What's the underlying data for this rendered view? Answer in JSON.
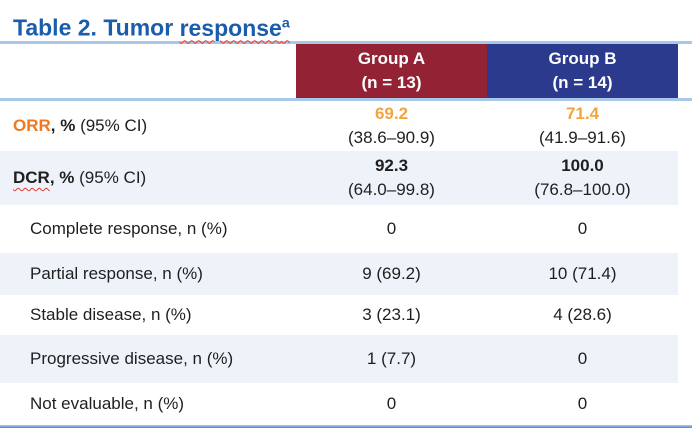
{
  "title": {
    "prefix": "Table 2. Tumor ",
    "underlined_word": "response",
    "superscript": "a"
  },
  "table": {
    "col_headers": [
      {
        "group": "Group A",
        "n": "(n = 13)"
      },
      {
        "group": "Group B",
        "n": "(n = 14)"
      }
    ],
    "rows": [
      {
        "label": "ORR",
        "label_suffix": ", %",
        "label_ci": " (95% CI)",
        "a_main": "69.2",
        "a_ci": "(38.6–90.9)",
        "b_main": "71.4",
        "b_ci": "(41.9–91.6)"
      },
      {
        "label": "DCR",
        "label_suffix": ", %",
        "label_ci": " (95% CI)",
        "a_main": "92.3",
        "a_ci": "(64.0–99.8)",
        "b_main": "100.0",
        "b_ci": "(76.8–100.0)"
      },
      {
        "label": "Complete response, n (%)",
        "a": "0",
        "b": "0"
      },
      {
        "label": "Partial response, n (%)",
        "a": "9 (69.2)",
        "b": "10 (71.4)"
      },
      {
        "label": "Stable disease, n (%)",
        "a": "3 (23.1)",
        "b": "4 (28.6)"
      },
      {
        "label": "Progressive disease, n (%)",
        "a": "1 (7.7)",
        "b": "0"
      },
      {
        "label": "Not evaluable, n (%)",
        "a": "0",
        "b": "0"
      }
    ]
  },
  "colors": {
    "title_blue": "#1A5DAB",
    "group_a_header": "#932235",
    "group_b_header": "#2B3A8D",
    "row_highlight": "#EEF3FA",
    "rule_light_blue": "#A9C7E9",
    "rule_bottom_blue": "#5585CB",
    "orr_label_orange": "#F0781E",
    "orr_value_orange": "#F5A33C",
    "spellcheck_red": "#E4372B"
  },
  "chart_data": {
    "type": "table",
    "title": "Table 2. Tumor response (superscript a)",
    "columns": [
      "",
      "Group A (n = 13)",
      "Group B (n = 14)"
    ],
    "rows": [
      [
        "ORR, % (95% CI)",
        "69.2 (38.6–90.9)",
        "71.4 (41.9–91.6)"
      ],
      [
        "DCR, % (95% CI)",
        "92.3 (64.0–99.8)",
        "100.0 (76.8–100.0)"
      ],
      [
        "Complete response, n (%)",
        "0",
        "0"
      ],
      [
        "Partial response, n (%)",
        "9 (69.2)",
        "10 (71.4)"
      ],
      [
        "Stable disease, n (%)",
        "3 (23.1)",
        "4 (28.6)"
      ],
      [
        "Progressive disease, n (%)",
        "1 (7.7)",
        "0"
      ],
      [
        "Not evaluable, n (%)",
        "0",
        "0"
      ]
    ]
  }
}
